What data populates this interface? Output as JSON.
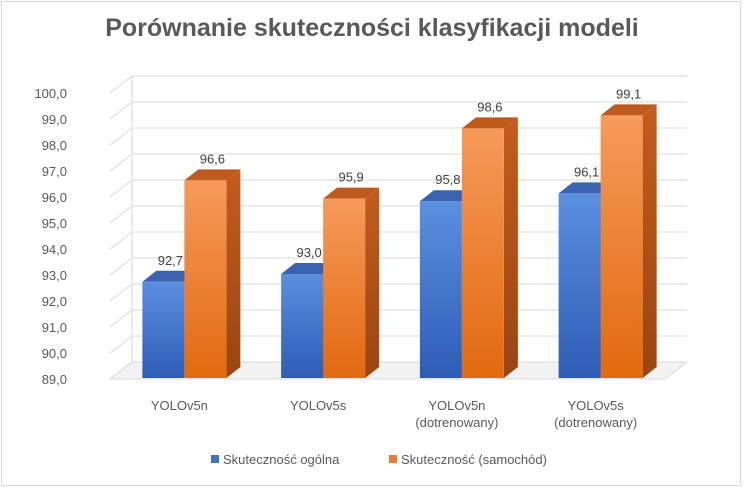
{
  "chart_data": {
    "type": "bar",
    "title": "Porównanie skuteczności klasyfikacji modeli",
    "categories": [
      [
        "YOLOv5n"
      ],
      [
        "YOLOv5s"
      ],
      [
        "YOLOv5n",
        "(dotrenowany)"
      ],
      [
        "YOLOv5s",
        "(dotrenowany)"
      ]
    ],
    "series": [
      {
        "name": "Skuteczność ogólna",
        "values": [
          92.7,
          93.0,
          95.8,
          96.1
        ],
        "labels": [
          "92,7",
          "93,0",
          "95,8",
          "96,1"
        ],
        "color": "#4472c4"
      },
      {
        "name": "Skuteczność (samochód)",
        "values": [
          96.6,
          95.9,
          98.6,
          99.1
        ],
        "labels": [
          "96,6",
          "95,9",
          "98,6",
          "99,1"
        ],
        "color": "#ed7d31"
      }
    ],
    "ylim": [
      89.0,
      100.0
    ],
    "yticks": [
      "89,0",
      "90,0",
      "91,0",
      "92,0",
      "93,0",
      "94,0",
      "95,0",
      "96,0",
      "97,0",
      "98,0",
      "99,0",
      "100,0"
    ],
    "grid": true,
    "legend_position": "bottom"
  }
}
